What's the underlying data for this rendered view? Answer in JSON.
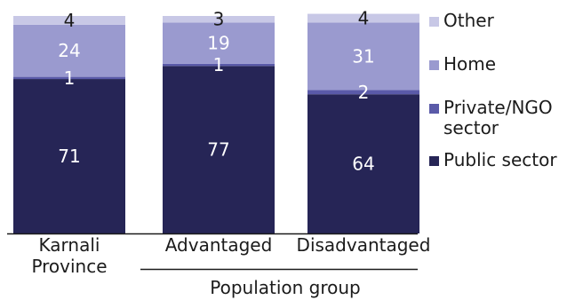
{
  "chart_data": {
    "type": "bar",
    "stacked": true,
    "categories": [
      "Karnali\nProvince",
      "Advantaged",
      "Disadvantaged"
    ],
    "group_label": "Population group",
    "series": [
      {
        "name": "Public sector",
        "values": [
          71,
          77,
          64
        ],
        "color": "#262556",
        "label_color": "#ffffff"
      },
      {
        "name": "Private/NGO\nsector",
        "values": [
          1,
          1,
          2
        ],
        "color": "#5a5aa8",
        "label_color": "#ffffff"
      },
      {
        "name": "Home",
        "values": [
          24,
          19,
          31
        ],
        "color": "#9a9acf",
        "label_color": "#ffffff"
      },
      {
        "name": "Other",
        "values": [
          4,
          3,
          4
        ],
        "color": "#c8c8e6",
        "label_color": "#1b1b1b"
      }
    ],
    "legend_order": [
      "Other",
      "Home",
      "Private/NGO\nsector",
      "Public sector"
    ],
    "ylim": [
      0,
      100
    ],
    "legend_position": "right",
    "grid": false
  }
}
